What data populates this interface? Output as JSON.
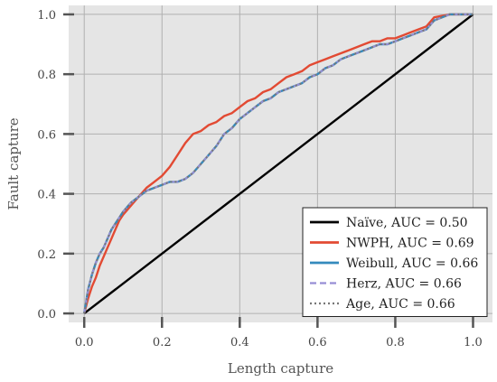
{
  "chart_data": {
    "type": "line",
    "title": "",
    "xlabel": "Length capture",
    "ylabel": "Fault capture",
    "xlim": [
      -0.04,
      1.05
    ],
    "ylim": [
      -0.03,
      1.03
    ],
    "xticks": [
      "0.0",
      "0.2",
      "0.4",
      "0.6",
      "0.8",
      "1.0"
    ],
    "yticks": [
      "0.0",
      "0.2",
      "0.4",
      "0.6",
      "0.8",
      "1.0"
    ],
    "grid": true,
    "legend_position": "bottom-right",
    "series": [
      {
        "name": "Naïve, AUC = 0.50",
        "color": "#000000",
        "style": "solid",
        "x": [
          0.0,
          1.0
        ],
        "y": [
          0.0,
          1.0
        ]
      },
      {
        "name": "NWPH, AUC = 0.69",
        "color": "#E24A33",
        "style": "solid",
        "x": [
          0.0,
          0.01,
          0.02,
          0.03,
          0.04,
          0.05,
          0.06,
          0.07,
          0.08,
          0.09,
          0.1,
          0.12,
          0.14,
          0.16,
          0.18,
          0.2,
          0.22,
          0.24,
          0.26,
          0.28,
          0.3,
          0.32,
          0.34,
          0.36,
          0.38,
          0.4,
          0.42,
          0.44,
          0.46,
          0.48,
          0.5,
          0.52,
          0.54,
          0.56,
          0.58,
          0.6,
          0.62,
          0.64,
          0.66,
          0.68,
          0.7,
          0.72,
          0.74,
          0.76,
          0.78,
          0.8,
          0.82,
          0.84,
          0.86,
          0.88,
          0.9,
          0.92,
          0.94,
          0.96,
          0.98,
          1.0
        ],
        "y": [
          0.0,
          0.05,
          0.09,
          0.12,
          0.16,
          0.19,
          0.22,
          0.25,
          0.28,
          0.31,
          0.33,
          0.36,
          0.39,
          0.42,
          0.44,
          0.46,
          0.49,
          0.53,
          0.57,
          0.6,
          0.61,
          0.63,
          0.64,
          0.66,
          0.67,
          0.69,
          0.71,
          0.72,
          0.74,
          0.75,
          0.77,
          0.79,
          0.8,
          0.81,
          0.83,
          0.84,
          0.85,
          0.86,
          0.87,
          0.88,
          0.89,
          0.9,
          0.91,
          0.91,
          0.92,
          0.92,
          0.93,
          0.94,
          0.95,
          0.96,
          0.99,
          0.995,
          1.0,
          1.0,
          1.0,
          1.0
        ]
      },
      {
        "name": "Weibull, AUC = 0.66",
        "color": "#348ABD",
        "style": "solid",
        "x": [
          0.0,
          0.01,
          0.02,
          0.03,
          0.04,
          0.05,
          0.06,
          0.07,
          0.08,
          0.09,
          0.1,
          0.12,
          0.14,
          0.16,
          0.18,
          0.2,
          0.22,
          0.24,
          0.26,
          0.28,
          0.3,
          0.32,
          0.34,
          0.36,
          0.38,
          0.4,
          0.42,
          0.44,
          0.46,
          0.48,
          0.5,
          0.52,
          0.54,
          0.56,
          0.58,
          0.6,
          0.62,
          0.64,
          0.66,
          0.68,
          0.7,
          0.72,
          0.74,
          0.76,
          0.78,
          0.8,
          0.82,
          0.84,
          0.86,
          0.88,
          0.9,
          0.92,
          0.94,
          0.96,
          0.98,
          1.0
        ],
        "y": [
          0.0,
          0.08,
          0.13,
          0.17,
          0.2,
          0.22,
          0.25,
          0.28,
          0.3,
          0.32,
          0.34,
          0.37,
          0.39,
          0.41,
          0.42,
          0.43,
          0.44,
          0.44,
          0.45,
          0.47,
          0.5,
          0.53,
          0.56,
          0.6,
          0.62,
          0.65,
          0.67,
          0.69,
          0.71,
          0.72,
          0.74,
          0.75,
          0.76,
          0.77,
          0.79,
          0.8,
          0.82,
          0.83,
          0.85,
          0.86,
          0.87,
          0.88,
          0.89,
          0.9,
          0.9,
          0.91,
          0.92,
          0.93,
          0.94,
          0.95,
          0.98,
          0.99,
          1.0,
          1.0,
          1.0,
          1.0
        ]
      },
      {
        "name": "Herz, AUC = 0.66",
        "color": "#988ED5",
        "style": "dashed",
        "x": [
          0.0,
          0.01,
          0.02,
          0.03,
          0.04,
          0.05,
          0.06,
          0.07,
          0.08,
          0.09,
          0.1,
          0.12,
          0.14,
          0.16,
          0.18,
          0.2,
          0.22,
          0.24,
          0.26,
          0.28,
          0.3,
          0.32,
          0.34,
          0.36,
          0.38,
          0.4,
          0.42,
          0.44,
          0.46,
          0.48,
          0.5,
          0.52,
          0.54,
          0.56,
          0.58,
          0.6,
          0.62,
          0.64,
          0.66,
          0.68,
          0.7,
          0.72,
          0.74,
          0.76,
          0.78,
          0.8,
          0.82,
          0.84,
          0.86,
          0.88,
          0.9,
          0.92,
          0.94,
          0.96,
          0.98,
          1.0
        ],
        "y": [
          0.0,
          0.08,
          0.13,
          0.17,
          0.2,
          0.22,
          0.25,
          0.28,
          0.3,
          0.32,
          0.34,
          0.37,
          0.39,
          0.41,
          0.42,
          0.43,
          0.44,
          0.44,
          0.45,
          0.47,
          0.5,
          0.53,
          0.56,
          0.6,
          0.62,
          0.65,
          0.67,
          0.69,
          0.71,
          0.72,
          0.74,
          0.75,
          0.76,
          0.77,
          0.79,
          0.8,
          0.82,
          0.83,
          0.85,
          0.86,
          0.87,
          0.88,
          0.89,
          0.9,
          0.9,
          0.91,
          0.92,
          0.93,
          0.94,
          0.95,
          0.98,
          0.99,
          1.0,
          1.0,
          1.0,
          1.0
        ]
      },
      {
        "name": "Age, AUC = 0.66",
        "color": "#777777",
        "style": "dotted",
        "x": [
          0.0,
          0.01,
          0.02,
          0.03,
          0.04,
          0.05,
          0.06,
          0.07,
          0.08,
          0.09,
          0.1,
          0.12,
          0.14,
          0.16,
          0.18,
          0.2,
          0.22,
          0.24,
          0.26,
          0.28,
          0.3,
          0.32,
          0.34,
          0.36,
          0.38,
          0.4,
          0.42,
          0.44,
          0.46,
          0.48,
          0.5,
          0.52,
          0.54,
          0.56,
          0.58,
          0.6,
          0.62,
          0.64,
          0.66,
          0.68,
          0.7,
          0.72,
          0.74,
          0.76,
          0.78,
          0.8,
          0.82,
          0.84,
          0.86,
          0.88,
          0.9,
          0.92,
          0.94,
          0.96,
          0.98,
          1.0
        ],
        "y": [
          0.0,
          0.08,
          0.13,
          0.17,
          0.2,
          0.22,
          0.25,
          0.28,
          0.3,
          0.32,
          0.34,
          0.37,
          0.39,
          0.41,
          0.42,
          0.43,
          0.44,
          0.44,
          0.45,
          0.47,
          0.5,
          0.53,
          0.56,
          0.6,
          0.62,
          0.65,
          0.67,
          0.69,
          0.71,
          0.72,
          0.74,
          0.75,
          0.76,
          0.77,
          0.79,
          0.8,
          0.82,
          0.83,
          0.85,
          0.86,
          0.87,
          0.88,
          0.89,
          0.9,
          0.9,
          0.91,
          0.92,
          0.93,
          0.94,
          0.95,
          0.98,
          0.99,
          1.0,
          1.0,
          1.0,
          1.0
        ]
      }
    ]
  },
  "colors": {
    "plot_background": "#E5E5E5",
    "grid": "#B0B0B0",
    "axis_tick": "#555555"
  }
}
